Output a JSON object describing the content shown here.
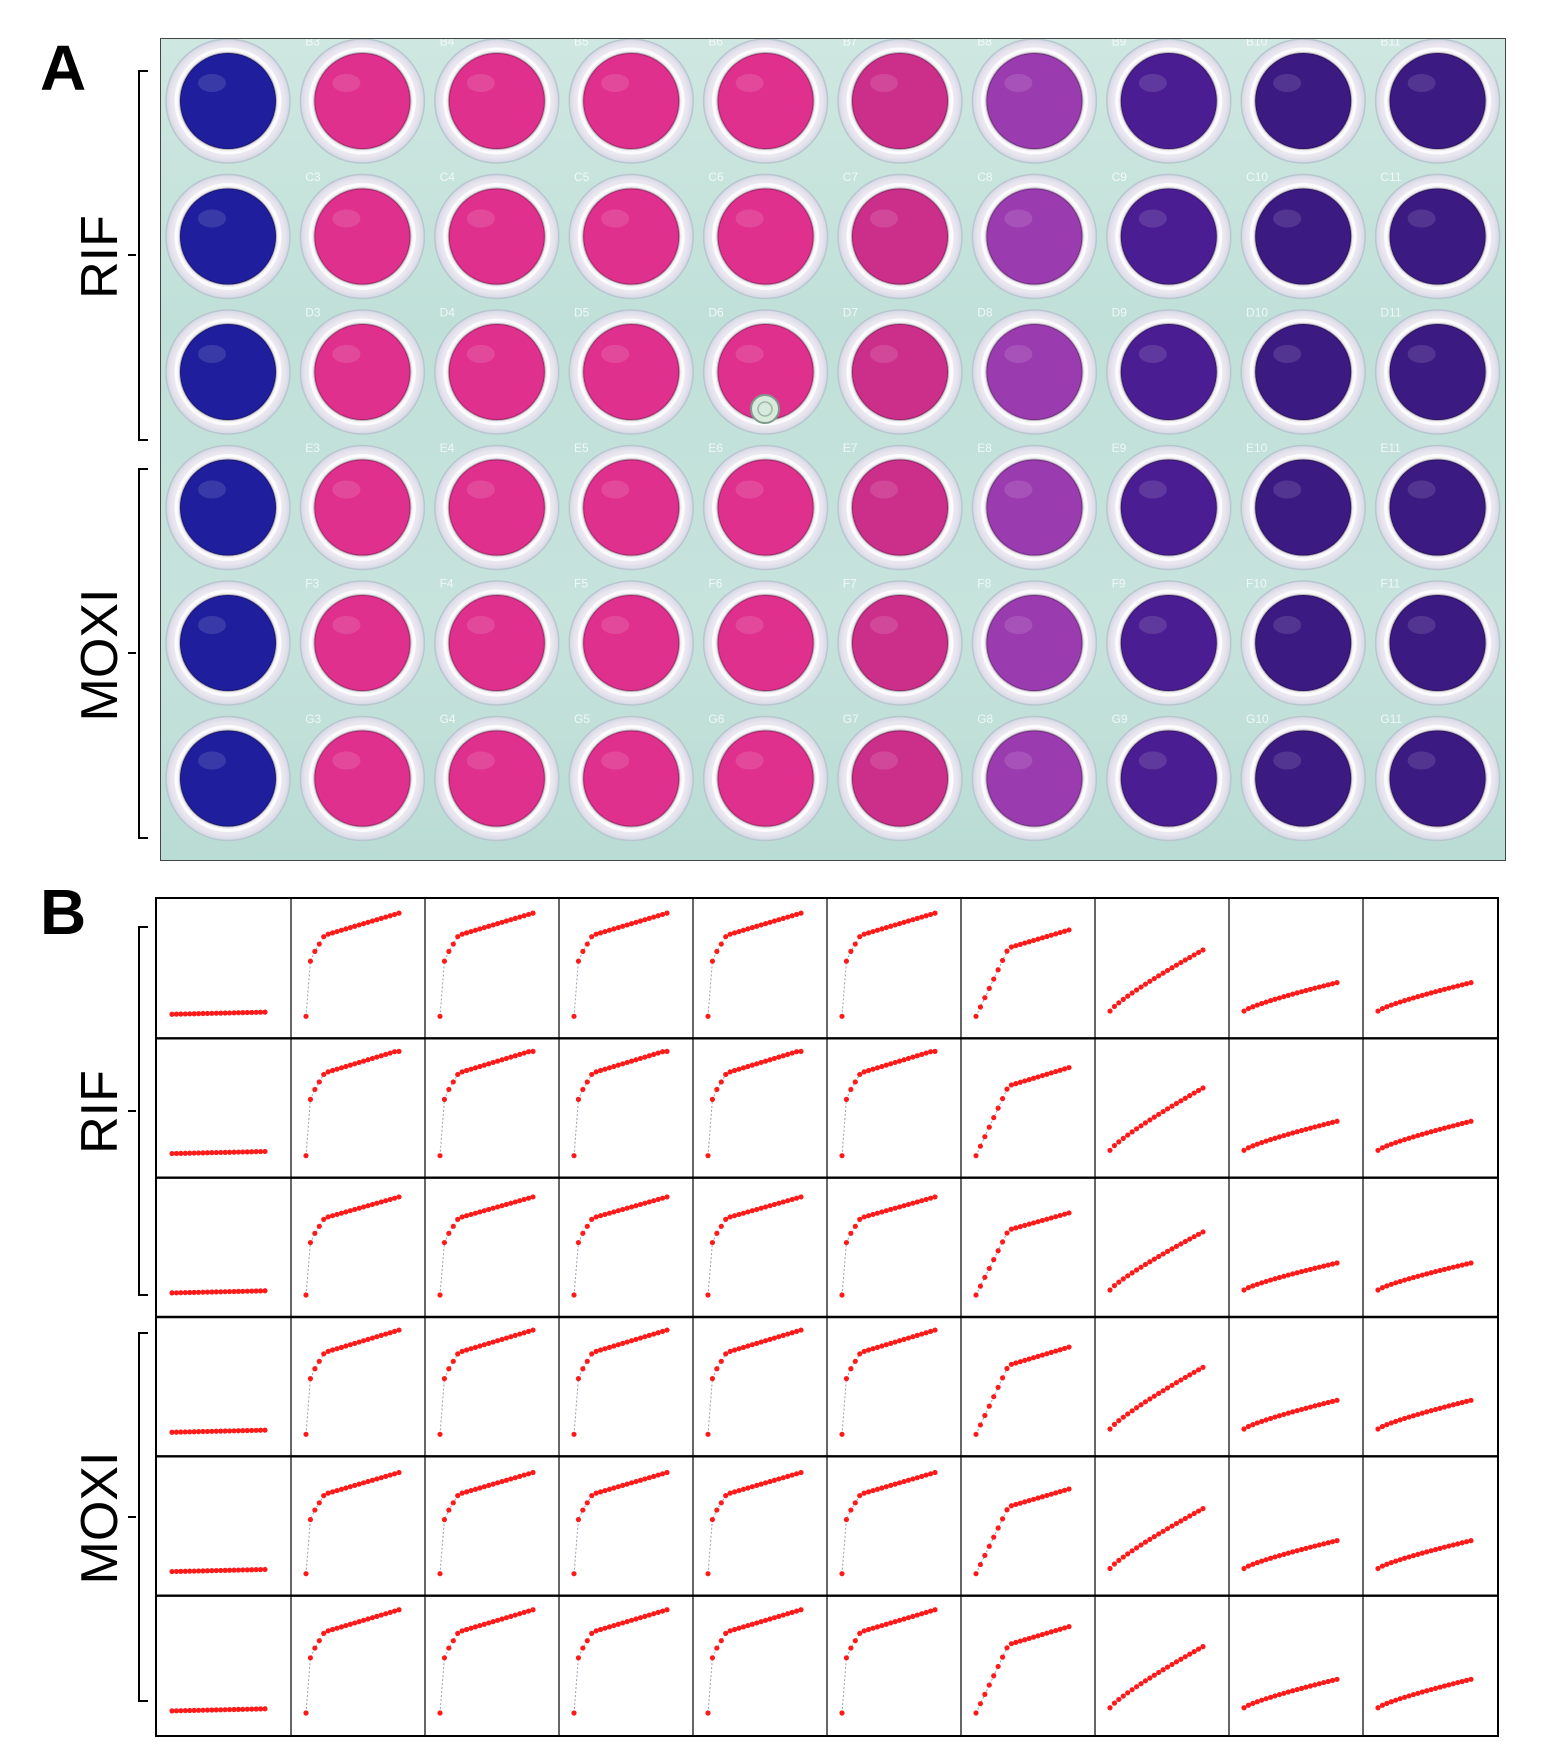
{
  "panel_a": {
    "letter": "A",
    "groups": [
      {
        "label": "RIF",
        "rows": [
          0,
          1,
          2
        ]
      },
      {
        "label": "MOXI",
        "rows": [
          3,
          4,
          5
        ]
      }
    ],
    "well_labels": [
      [
        "",
        "B3",
        "B4",
        "B5",
        "B6",
        "B7",
        "B8",
        "B9",
        "B10",
        "B11"
      ],
      [
        "",
        "C3",
        "C4",
        "C5",
        "C6",
        "C7",
        "C8",
        "C9",
        "C10",
        "C11"
      ],
      [
        "",
        "D3",
        "D4",
        "D5",
        "D6",
        "D7",
        "D8",
        "D9",
        "D10",
        "D11"
      ],
      [
        "",
        "E3",
        "E4",
        "E5",
        "E6",
        "E7",
        "E8",
        "E9",
        "E10",
        "E11"
      ],
      [
        "",
        "F3",
        "F4",
        "F5",
        "F6",
        "F7",
        "F8",
        "F9",
        "F10",
        "F11"
      ],
      [
        "",
        "G3",
        "G4",
        "G5",
        "G6",
        "G7",
        "G8",
        "G9",
        "G10",
        "G11"
      ]
    ],
    "well_colors": {
      "blue": "#1f1e9c",
      "pink": "#e0308e",
      "pink_dark": "#cc2f8a",
      "magenta": "#9b3bb0",
      "purple": "#4a1e92",
      "purple_dark": "#3b1a82"
    },
    "column_color_keys": [
      "blue",
      "pink",
      "pink",
      "pink",
      "pink",
      "pink_dark",
      "magenta",
      "purple",
      "purple_dark",
      "purple_dark"
    ],
    "plate_color": "#c4e2db"
  },
  "panel_b": {
    "letter": "B",
    "groups": [
      {
        "label": "RIF",
        "rows": [
          0,
          1,
          2
        ]
      },
      {
        "label": "MOXI",
        "rows": [
          3,
          4,
          5
        ]
      }
    ],
    "marker_color": "#ff1a1a",
    "line_color": "#9aa0b4",
    "curve_shapes_by_column": [
      "flat",
      "steep",
      "steep",
      "steep",
      "steep",
      "steep",
      "medium",
      "linear",
      "shallow",
      "shallow"
    ],
    "row_variation": [
      0.0,
      0.02,
      -0.05,
      0.01,
      -0.02,
      0.0
    ]
  }
}
